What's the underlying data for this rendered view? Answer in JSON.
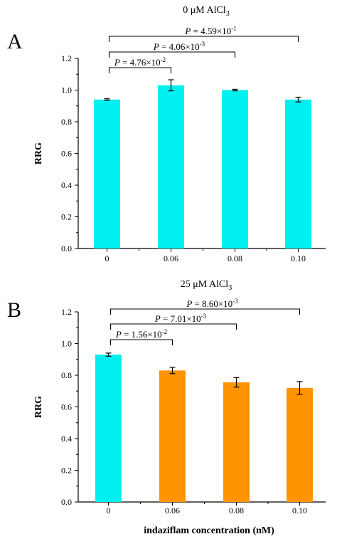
{
  "chart_data": [
    {
      "type": "bar",
      "panel": "A",
      "title_prefix": "0 μM AlCl",
      "title_sub": "3",
      "ylabel": "RRG",
      "xlabel": "",
      "categories": [
        "0",
        "0.06",
        "0.08",
        "0.10"
      ],
      "values": [
        0.94,
        1.03,
        1.0,
        0.94
      ],
      "errors": [
        0.005,
        0.035,
        0.005,
        0.015
      ],
      "bar_colors": [
        "#00f0ef",
        "#00f0ef",
        "#00f0ef",
        "#00f0ef"
      ],
      "ylim": [
        0,
        1.2
      ],
      "yticks": [
        "0.0",
        "0.2",
        "0.4",
        "0.6",
        "0.8",
        "1.0",
        "1.2"
      ],
      "grid": false,
      "comparisons": [
        {
          "from": 0,
          "to": 1,
          "p_prefix": "P",
          "p_text": " = 4.76×10",
          "p_exp": "-2"
        },
        {
          "from": 0,
          "to": 2,
          "p_prefix": "P",
          "p_text": " = 4.06×10",
          "p_exp": "-3"
        },
        {
          "from": 0,
          "to": 3,
          "p_prefix": "P",
          "p_text": " = 4.59×10",
          "p_exp": "-1"
        }
      ]
    },
    {
      "type": "bar",
      "panel": "B",
      "title_prefix": "25 μM AlCl",
      "title_sub": "3",
      "ylabel": "RRG",
      "xlabel": "indaziflam concentration (nM)",
      "categories": [
        "0",
        "0.06",
        "0.08",
        "0.10"
      ],
      "values": [
        0.93,
        0.83,
        0.755,
        0.72
      ],
      "errors": [
        0.01,
        0.02,
        0.03,
        0.04
      ],
      "bar_colors": [
        "#00f0ef",
        "#ff9400",
        "#ff9400",
        "#ff9400"
      ],
      "ylim": [
        0,
        1.2
      ],
      "yticks": [
        "0.0",
        "0.2",
        "0.4",
        "0.6",
        "0.8",
        "1.0",
        "1.2"
      ],
      "grid": false,
      "comparisons": [
        {
          "from": 0,
          "to": 1,
          "p_prefix": "P",
          "p_text": " = 1.56×10",
          "p_exp": "-2"
        },
        {
          "from": 0,
          "to": 2,
          "p_prefix": "P",
          "p_text": " = 7.01×10",
          "p_exp": "-3"
        },
        {
          "from": 0,
          "to": 3,
          "p_prefix": "P",
          "p_text": " = 8.60×10",
          "p_exp": "-3"
        }
      ]
    }
  ]
}
